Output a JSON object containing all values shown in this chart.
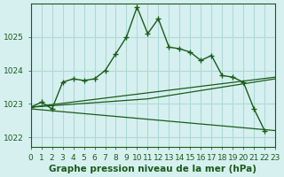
{
  "bg_color": "#d6f0f0",
  "grid_color": "#b0d8d8",
  "line_color": "#1a5c1a",
  "xlabel": "Graphe pression niveau de la mer (hPa)",
  "ylim": [
    1021.7,
    1026.0
  ],
  "xlim": [
    0,
    23
  ],
  "yticks": [
    1022,
    1023,
    1024,
    1025
  ],
  "xticks": [
    0,
    1,
    2,
    3,
    4,
    5,
    6,
    7,
    8,
    9,
    10,
    11,
    12,
    13,
    14,
    15,
    16,
    17,
    18,
    19,
    20,
    21,
    22,
    23
  ],
  "main_x": [
    0,
    1,
    2,
    3,
    4,
    5,
    6,
    7,
    8,
    9,
    10,
    11,
    12,
    13,
    14,
    15,
    16,
    17,
    18,
    19,
    20,
    21,
    22
  ],
  "main_y": [
    1022.9,
    1023.05,
    1022.85,
    1023.65,
    1023.75,
    1023.7,
    1023.75,
    1024.0,
    1024.5,
    1025.0,
    1025.9,
    1025.1,
    1025.55,
    1024.7,
    1024.65,
    1024.55,
    1024.3,
    1024.45,
    1023.85,
    1023.8,
    1023.65,
    1022.85,
    1022.2
  ],
  "line2_x": [
    0,
    23
  ],
  "line2_y": [
    1022.9,
    1023.8
  ],
  "line3_x": [
    0,
    23
  ],
  "line3_y": [
    1022.85,
    1022.2
  ],
  "line4_x": [
    0,
    11,
    23
  ],
  "line4_y": [
    1022.9,
    1023.15,
    1023.75
  ],
  "tick_fontsize": 6.5,
  "xlabel_fontsize": 7.5
}
